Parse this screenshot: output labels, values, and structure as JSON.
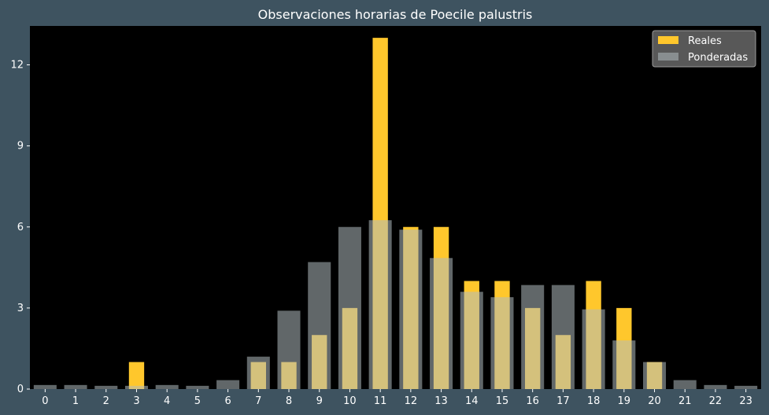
{
  "chart_data": {
    "type": "bar",
    "title": "Observaciones horarias de Poecile palustris",
    "xlabel": "",
    "ylabel": "",
    "categories": [
      "0",
      "1",
      "2",
      "3",
      "4",
      "5",
      "6",
      "7",
      "8",
      "9",
      "10",
      "11",
      "12",
      "13",
      "14",
      "15",
      "16",
      "17",
      "18",
      "19",
      "20",
      "21",
      "22",
      "23"
    ],
    "series": [
      {
        "name": "Reales",
        "color": "#ffc72c",
        "values": [
          0,
          0,
          0,
          1,
          0,
          0,
          0,
          1,
          1,
          2,
          3,
          13,
          6,
          6,
          4,
          4,
          3,
          2,
          4,
          3,
          1,
          0,
          0,
          0
        ]
      },
      {
        "name": "Ponderadas",
        "color": "#b0bcbf",
        "values": [
          0.15,
          0.15,
          0.12,
          0.12,
          0.15,
          0.12,
          0.33,
          1.2,
          2.9,
          4.7,
          6.0,
          6.25,
          5.9,
          4.85,
          3.6,
          3.4,
          3.85,
          3.85,
          2.95,
          1.8,
          1.0,
          0.33,
          0.15,
          0.12
        ]
      }
    ],
    "ylim": [
      0,
      13.44
    ],
    "yticks": [
      0,
      3,
      6,
      9,
      12
    ],
    "legend_position": "top-right",
    "grid": false,
    "colors": {
      "background": "#3e5360",
      "plot_area": "#000000",
      "legend_background": "#585858",
      "text": "#ffffff"
    }
  }
}
